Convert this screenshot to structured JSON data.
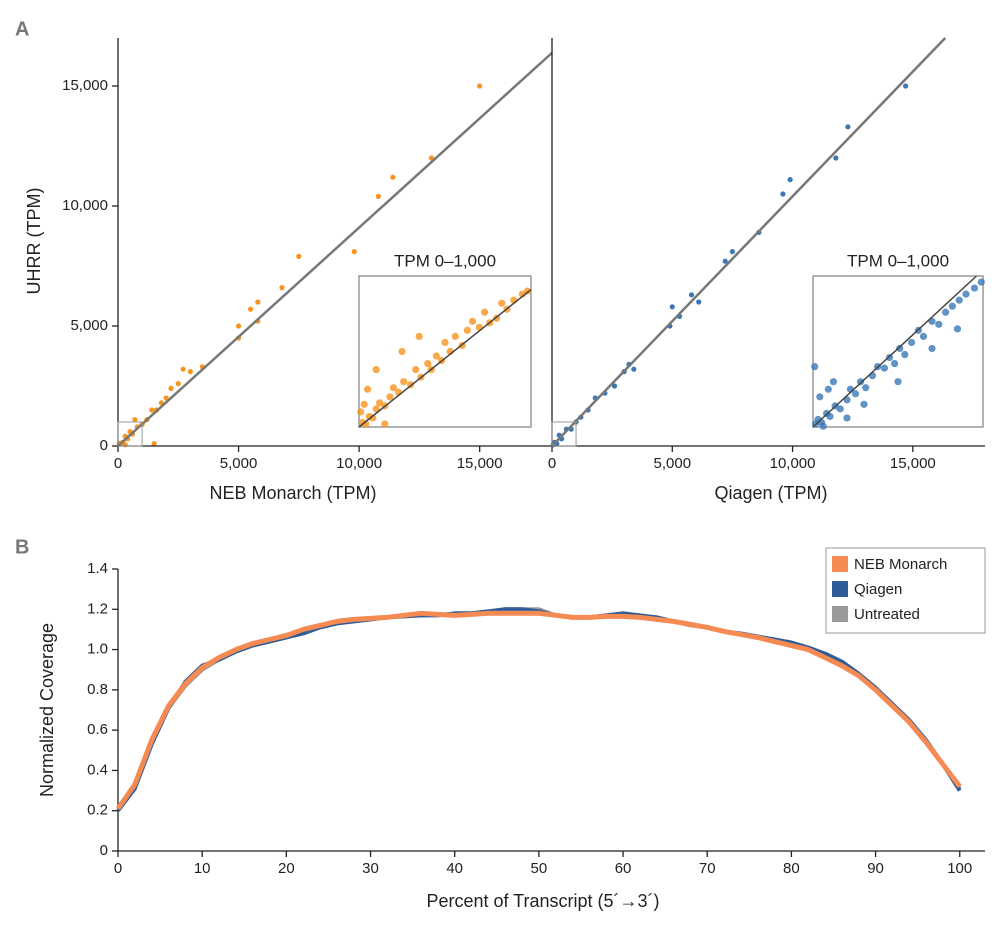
{
  "chart_data": [
    {
      "type": "scatter",
      "panel_label": "A",
      "ylabel": "UHRR (TPM)",
      "xlabel": "NEB Monarch (TPM)",
      "color": "#f7941d",
      "xlim": [
        0,
        18000
      ],
      "ylim": [
        0,
        17000
      ],
      "xticks": [
        0,
        {
          "value": 5000,
          "label": "5,000"
        },
        {
          "value": 10000,
          "label": "10,000"
        },
        {
          "value": 15000,
          "label": "15,000"
        }
      ],
      "yticks": [
        0,
        {
          "value": 5000,
          "label": "5,000"
        },
        {
          "value": 10000,
          "label": "10,000"
        },
        {
          "value": 15000,
          "label": "15,000"
        }
      ],
      "trend_line": {
        "slope": 0.91,
        "intercept": 0
      },
      "x": [
        15000,
        13000,
        11400,
        10800,
        9800,
        7500,
        6800,
        5800,
        5500,
        5800,
        5000,
        5000,
        3500,
        3000,
        2700,
        2500,
        2200,
        2000,
        1800,
        1600,
        1400,
        1200,
        1000,
        800,
        600,
        500,
        400,
        300,
        200,
        100,
        50,
        1500,
        300,
        700
      ],
      "values": [
        15000,
        12000,
        11200,
        10400,
        8100,
        7900,
        6600,
        6000,
        5700,
        5200,
        5000,
        4500,
        3300,
        3100,
        3200,
        2600,
        2400,
        2000,
        1800,
        1500,
        1500,
        1100,
        900,
        800,
        500,
        600,
        300,
        400,
        150,
        120,
        80,
        100,
        50,
        1100
      ],
      "inset": {
        "title": "TPM 0–1,000",
        "xlim": [
          0,
          1000
        ],
        "ylim": [
          0,
          1000
        ],
        "x": [
          20,
          40,
          60,
          80,
          100,
          120,
          150,
          180,
          200,
          230,
          260,
          300,
          330,
          360,
          400,
          420,
          450,
          480,
          500,
          530,
          560,
          600,
          630,
          660,
          700,
          730,
          760,
          800,
          830,
          860,
          900,
          950,
          980,
          50,
          30,
          100,
          250,
          350,
          150,
          10
        ],
        "values": [
          30,
          20,
          70,
          60,
          120,
          160,
          140,
          200,
          260,
          230,
          300,
          280,
          380,
          330,
          420,
          380,
          470,
          440,
          560,
          500,
          600,
          540,
          640,
          700,
          660,
          760,
          690,
          720,
          820,
          780,
          840,
          880,
          900,
          250,
          150,
          380,
          500,
          600,
          20,
          100
        ]
      }
    },
    {
      "type": "scatter",
      "xlabel": "Qiagen (TPM)",
      "color": "#3a78b5",
      "xlim": [
        0,
        18000
      ],
      "ylim": [
        0,
        17000
      ],
      "xticks": [
        0,
        {
          "value": 5000,
          "label": "5,000"
        },
        {
          "value": 10000,
          "label": "10,000"
        },
        {
          "value": 15000,
          "label": "15,000"
        }
      ],
      "trend_line": {
        "slope": 1.04,
        "intercept": 0
      },
      "x": [
        14700,
        12300,
        11800,
        9900,
        9600,
        8600,
        7500,
        7200,
        5800,
        5000,
        5300,
        4900,
        3200,
        3000,
        2600,
        2200,
        1800,
        1500,
        1200,
        1000,
        800,
        600,
        400,
        300,
        200,
        100,
        50,
        3400,
        6100
      ],
      "values": [
        15000,
        13300,
        12000,
        11100,
        10500,
        8900,
        8100,
        7700,
        6300,
        5800,
        5400,
        5000,
        3400,
        3100,
        2500,
        2200,
        2000,
        1500,
        1200,
        1000,
        700,
        700,
        300,
        450,
        100,
        150,
        50,
        3200,
        6000
      ],
      "inset": {
        "title": "TPM 0–1,000",
        "xlim": [
          0,
          1000
        ],
        "ylim": [
          0,
          1000
        ],
        "x": [
          15,
          30,
          50,
          80,
          100,
          130,
          160,
          200,
          220,
          250,
          280,
          310,
          350,
          380,
          420,
          450,
          480,
          510,
          540,
          580,
          620,
          650,
          700,
          740,
          780,
          820,
          860,
          900,
          950,
          990,
          40,
          60,
          90,
          300,
          500,
          700,
          850,
          200,
          120,
          10
        ],
        "values": [
          20,
          50,
          30,
          90,
          70,
          140,
          120,
          180,
          250,
          220,
          300,
          260,
          340,
          400,
          390,
          460,
          420,
          520,
          480,
          560,
          640,
          600,
          700,
          680,
          760,
          800,
          840,
          880,
          920,
          960,
          200,
          5,
          250,
          150,
          300,
          520,
          650,
          60,
          300,
          400
        ]
      }
    },
    {
      "type": "line",
      "panel_label": "B",
      "ylabel": "Normalized Coverage",
      "xlabel": "Percent of Transcript (5´→3´)",
      "xlim": [
        0,
        103
      ],
      "ylim": [
        0,
        1.4
      ],
      "legend": "top-right",
      "xticks": [
        0,
        10,
        20,
        30,
        40,
        50,
        60,
        70,
        80,
        90,
        100
      ],
      "yticks": [
        0,
        0.2,
        0.4,
        0.6,
        0.8,
        {
          "value": 1,
          "label": "1.0"
        },
        1.2,
        1.4
      ],
      "x": [
        0,
        2,
        4,
        6,
        8,
        10,
        12,
        14,
        16,
        18,
        20,
        22,
        24,
        26,
        28,
        30,
        32,
        34,
        36,
        38,
        40,
        42,
        44,
        46,
        48,
        50,
        52,
        54,
        56,
        58,
        60,
        62,
        64,
        66,
        68,
        70,
        72,
        74,
        76,
        78,
        80,
        82,
        84,
        86,
        88,
        90,
        92,
        94,
        96,
        98,
        100
      ],
      "series": [
        {
          "name": "NEB Monarch",
          "color": "#f58a53",
          "values": [
            0.21,
            0.33,
            0.55,
            0.72,
            0.83,
            0.91,
            0.96,
            1.0,
            1.03,
            1.05,
            1.07,
            1.1,
            1.12,
            1.14,
            1.15,
            1.155,
            1.16,
            1.17,
            1.18,
            1.175,
            1.17,
            1.175,
            1.18,
            1.18,
            1.18,
            1.18,
            1.17,
            1.16,
            1.16,
            1.165,
            1.165,
            1.16,
            1.15,
            1.14,
            1.125,
            1.11,
            1.09,
            1.075,
            1.06,
            1.04,
            1.02,
            1.0,
            0.96,
            0.92,
            0.87,
            0.8,
            0.72,
            0.64,
            0.54,
            0.43,
            0.32
          ]
        },
        {
          "name": "Qiagen",
          "color": "#2e5c9a",
          "values": [
            0.2,
            0.31,
            0.53,
            0.71,
            0.84,
            0.92,
            0.95,
            0.99,
            1.02,
            1.04,
            1.06,
            1.08,
            1.11,
            1.13,
            1.14,
            1.15,
            1.16,
            1.165,
            1.17,
            1.17,
            1.18,
            1.18,
            1.19,
            1.2,
            1.2,
            1.19,
            1.17,
            1.16,
            1.16,
            1.17,
            1.18,
            1.17,
            1.16,
            1.14,
            1.125,
            1.11,
            1.09,
            1.08,
            1.065,
            1.05,
            1.035,
            1.01,
            0.98,
            0.94,
            0.88,
            0.81,
            0.73,
            0.65,
            0.55,
            0.43,
            0.3
          ]
        },
        {
          "name": "Untreated",
          "color": "#9a9a9a",
          "values": [
            0.21,
            0.32,
            0.54,
            0.71,
            0.82,
            0.9,
            0.95,
            0.99,
            1.02,
            1.04,
            1.06,
            1.09,
            1.11,
            1.13,
            1.14,
            1.15,
            1.16,
            1.17,
            1.17,
            1.175,
            1.17,
            1.18,
            1.19,
            1.2,
            1.2,
            1.2,
            1.17,
            1.16,
            1.16,
            1.17,
            1.17,
            1.16,
            1.155,
            1.14,
            1.12,
            1.11,
            1.09,
            1.075,
            1.06,
            1.045,
            1.03,
            1.0,
            0.97,
            0.93,
            0.87,
            0.8,
            0.72,
            0.64,
            0.54,
            0.43,
            0.31
          ]
        }
      ]
    }
  ]
}
